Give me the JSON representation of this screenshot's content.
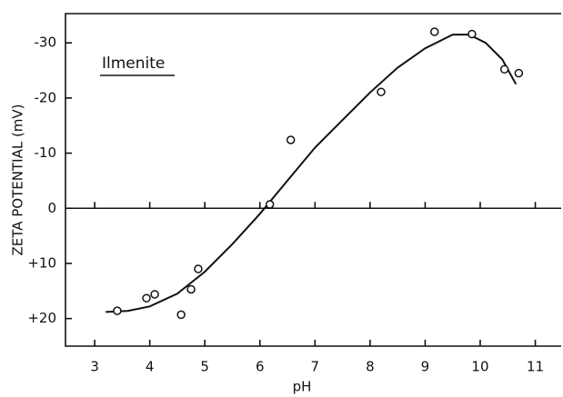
{
  "chart_data": {
    "type": "scatter",
    "title": "Ilmenite",
    "xlabel": "pH",
    "ylabel": "ZETA POTENTIAL (mV)",
    "xlim": [
      2.47,
      11.47
    ],
    "xticks": [
      3,
      4,
      5,
      6,
      7,
      8,
      9,
      10,
      11
    ],
    "ylim": [
      -35.3,
      25
    ],
    "y_inverted": true,
    "yticks": [
      -30,
      -20,
      -10,
      0,
      {
        "value": 10,
        "label": "+10"
      },
      {
        "value": 20,
        "label": "+20"
      }
    ],
    "grid": false,
    "color": "#111111",
    "points": {
      "x": [
        3.41,
        3.94,
        4.09,
        4.57,
        4.75,
        4.88,
        6.18,
        6.56,
        8.2,
        9.17,
        9.85,
        10.44,
        10.7
      ],
      "y": [
        18.6,
        16.3,
        15.6,
        19.3,
        14.7,
        11,
        -0.7,
        -12.4,
        -21.1,
        -32,
        -31.6,
        -25.2,
        -24.5
      ]
    },
    "curve": {
      "x": [
        3.2,
        3.6,
        4,
        4.5,
        5,
        5.5,
        6,
        6.5,
        7,
        7.5,
        8,
        8.5,
        9,
        9.5,
        9.8,
        10.1,
        10.4,
        10.65
      ],
      "y": [
        18.8,
        18.6,
        17.8,
        15.5,
        11.5,
        6.5,
        1,
        -5,
        -11,
        -16,
        -21,
        -25.5,
        -29,
        -31.5,
        -31.5,
        -30,
        -27,
        -22.5
      ]
    }
  }
}
